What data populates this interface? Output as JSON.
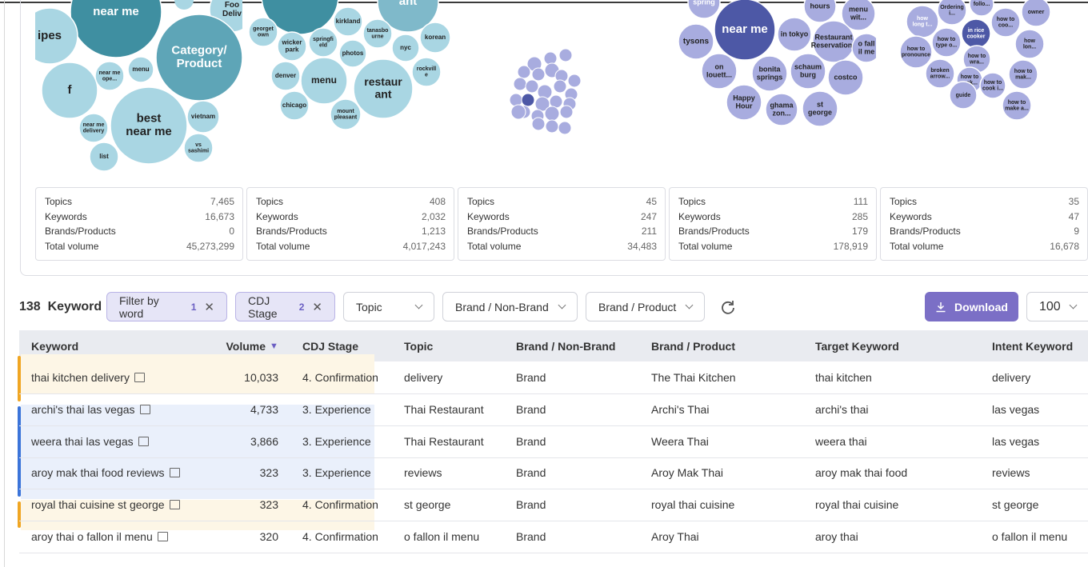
{
  "bubble_clusters": [
    {
      "bubbles": [
        {
          "label": [
            "near me"
          ]
        },
        {
          "label": [
            "ipes"
          ]
        },
        {
          "label": [
            "Foo",
            "Deliv"
          ]
        },
        {
          "label": [
            "Category/",
            "Product"
          ]
        },
        {
          "label": [
            "f"
          ]
        },
        {
          "label": [
            "near me",
            "ope..."
          ]
        },
        {
          "label": [
            "menu"
          ]
        },
        {
          "label": [
            "best",
            "near me"
          ]
        },
        {
          "label": [
            "vietnam"
          ]
        },
        {
          "label": [
            "near me",
            "delivery"
          ]
        },
        {
          "label": [
            "vs",
            "sashimi"
          ]
        },
        {
          "label": [
            "list"
          ]
        }
      ]
    },
    {
      "bubbles": [
        {
          "label": [
            "ant"
          ]
        },
        {
          "label": [
            "kirkland"
          ]
        },
        {
          "label": [
            "georget",
            "own"
          ]
        },
        {
          "label": [
            "tanasbo",
            "urne"
          ]
        },
        {
          "label": [
            "wicker",
            "park"
          ]
        },
        {
          "label": [
            "springfi",
            "eld"
          ]
        },
        {
          "label": [
            "korean"
          ]
        },
        {
          "label": [
            "photos"
          ]
        },
        {
          "label": [
            "nyc"
          ]
        },
        {
          "label": [
            "denver"
          ]
        },
        {
          "label": [
            "menu"
          ]
        },
        {
          "label": [
            "restaur",
            "ant"
          ]
        },
        {
          "label": [
            "rockvill",
            "e"
          ]
        },
        {
          "label": [
            "chicago"
          ]
        },
        {
          "label": [
            "mount",
            "pleasant"
          ]
        }
      ]
    },
    {
      "bubbles": [
        {
          "label": [
            "spring"
          ]
        },
        {
          "label": [
            "near me"
          ]
        },
        {
          "label": [
            "hours"
          ]
        },
        {
          "label": [
            "menu",
            "wit..."
          ]
        },
        {
          "label": [
            "tysons"
          ]
        },
        {
          "label": [
            "in tokyo"
          ]
        },
        {
          "label": [
            "Restaurant",
            "Reservations"
          ]
        },
        {
          "label": [
            "o fall",
            "il me"
          ]
        },
        {
          "label": [
            "on",
            "louett..."
          ]
        },
        {
          "label": [
            "bonita",
            "springs"
          ]
        },
        {
          "label": [
            "schaum",
            "burg"
          ]
        },
        {
          "label": [
            "costco"
          ]
        },
        {
          "label": [
            "Happy",
            "Hour"
          ]
        },
        {
          "label": [
            "ghama",
            "zon..."
          ]
        },
        {
          "label": [
            "st",
            "george"
          ]
        }
      ]
    },
    {
      "bubbles": [
        {
          "label": [
            "how",
            "long t..."
          ]
        },
        {
          "label": [
            "Ordering",
            "i..."
          ]
        },
        {
          "label": [
            "follo..."
          ]
        },
        {
          "label": [
            "owner"
          ]
        },
        {
          "label": [
            "how to",
            "coo..."
          ]
        },
        {
          "label": [
            "in rice",
            "cooker"
          ]
        },
        {
          "label": [
            "how to",
            "type o..."
          ]
        },
        {
          "label": [
            "how",
            "lon..."
          ]
        },
        {
          "label": [
            "how to",
            "pronounce"
          ]
        },
        {
          "label": [
            "how to",
            "wra..."
          ]
        },
        {
          "label": [
            "broken",
            "arrow..."
          ]
        },
        {
          "label": [
            "how to",
            "mak..."
          ]
        },
        {
          "label": [
            "how to",
            "mak..."
          ]
        },
        {
          "label": [
            "how to",
            "cook i..."
          ]
        },
        {
          "label": [
            "guide"
          ]
        },
        {
          "label": [
            "how to",
            "make a..."
          ]
        }
      ]
    }
  ],
  "stats": [
    {
      "rows": [
        {
          "label": "Topics",
          "value": "7,465"
        },
        {
          "label": "Keywords",
          "value": "16,673"
        },
        {
          "label": "Brands/Products",
          "value": "0"
        },
        {
          "label": "Total volume",
          "value": "45,273,299"
        }
      ]
    },
    {
      "rows": [
        {
          "label": "Topics",
          "value": "408"
        },
        {
          "label": "Keywords",
          "value": "2,032"
        },
        {
          "label": "Brands/Products",
          "value": "1,213"
        },
        {
          "label": "Total volume",
          "value": "4,017,243"
        }
      ]
    },
    {
      "rows": [
        {
          "label": "Topics",
          "value": "45"
        },
        {
          "label": "Keywords",
          "value": "247"
        },
        {
          "label": "Brands/Products",
          "value": "211"
        },
        {
          "label": "Total volume",
          "value": "34,483"
        }
      ]
    },
    {
      "rows": [
        {
          "label": "Topics",
          "value": "111"
        },
        {
          "label": "Keywords",
          "value": "285"
        },
        {
          "label": "Brands/Products",
          "value": "179"
        },
        {
          "label": "Total volume",
          "value": "178,919"
        }
      ]
    },
    {
      "rows": [
        {
          "label": "Topics",
          "value": "35"
        },
        {
          "label": "Keywords",
          "value": "47"
        },
        {
          "label": "Brands/Products",
          "value": "9"
        },
        {
          "label": "Total volume",
          "value": "16,678"
        }
      ]
    }
  ],
  "toolbar": {
    "count": 138,
    "count_label": "Keyword",
    "filters": [
      {
        "label": "Filter by word",
        "badge": 1
      },
      {
        "label": "CDJ Stage",
        "badge": 2
      }
    ],
    "selects": [
      "Topic",
      "Brand / Non-Brand",
      "Brand / Product"
    ],
    "download": "Download",
    "page_size": 100
  },
  "table": {
    "columns": [
      "Keyword",
      "Volume",
      "CDJ Stage",
      "Topic",
      "Brand / Non-Brand",
      "Brand / Product",
      "Target Keyword",
      "Intent Keyword"
    ],
    "rows": [
      [
        "thai kitchen delivery",
        "10,033",
        "4. Confirmation",
        "delivery",
        "Brand",
        "The Thai Kitchen",
        "thai kitchen",
        "delivery"
      ],
      [
        "archi's thai las vegas",
        "4,733",
        "3. Experience",
        "Thai Restaurant",
        "Brand",
        "Archi's Thai",
        "archi's thai",
        "las vegas"
      ],
      [
        "weera thai las vegas",
        "3,866",
        "3. Experience",
        "Thai Restaurant",
        "Brand",
        "Weera Thai",
        "weera thai",
        "las vegas"
      ],
      [
        "aroy mak thai food reviews",
        "323",
        "3. Experience",
        "reviews",
        "Brand",
        "Aroy Mak Thai",
        "aroy mak thai food",
        "reviews"
      ],
      [
        "royal thai cuisine st george",
        "323",
        "4. Confirmation",
        "st george",
        "Brand",
        "royal thai cuisine",
        "royal thai cuisine",
        "st george"
      ],
      [
        "aroy thai o fallon il menu",
        "320",
        "4. Confirmation",
        "o fallon il menu",
        "Brand",
        "Aroy Thai",
        "aroy thai",
        "o fallon il menu"
      ]
    ]
  }
}
